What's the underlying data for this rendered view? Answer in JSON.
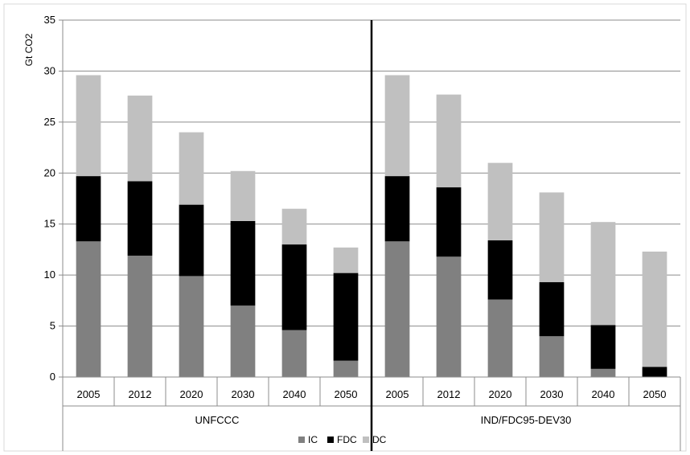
{
  "chart_data": {
    "type": "bar",
    "stacked": true,
    "ylabel": "Gt CO2",
    "ylim": [
      0,
      35
    ],
    "yticks": [
      0,
      5,
      10,
      15,
      20,
      25,
      30,
      35
    ],
    "grid": true,
    "legend_position": "bottom",
    "groups": [
      {
        "name": "UNFCCC",
        "categories": [
          "2005",
          "2012",
          "2020",
          "2030",
          "2040",
          "2050"
        ],
        "series": [
          {
            "name": "IC",
            "color": "#808080",
            "values": [
              13.3,
              11.9,
              9.9,
              7.0,
              4.6,
              1.6
            ]
          },
          {
            "name": "FDC",
            "color": "#000000",
            "values": [
              6.4,
              7.3,
              7.0,
              8.3,
              8.4,
              8.6
            ]
          },
          {
            "name": "DC",
            "color": "#c0c0c0",
            "values": [
              9.9,
              8.4,
              7.1,
              4.9,
              3.5,
              2.5
            ]
          }
        ]
      },
      {
        "name": "IND/FDC95-DEV30",
        "categories": [
          "2005",
          "2012",
          "2020",
          "2030",
          "2040",
          "2050"
        ],
        "series": [
          {
            "name": "IC",
            "color": "#808080",
            "values": [
              13.3,
              11.8,
              7.6,
              4.0,
              0.8,
              0.0
            ]
          },
          {
            "name": "FDC",
            "color": "#000000",
            "values": [
              6.4,
              6.8,
              5.8,
              5.3,
              4.3,
              1.0
            ]
          },
          {
            "name": "DC",
            "color": "#c0c0c0",
            "values": [
              9.9,
              9.1,
              7.6,
              8.8,
              10.1,
              11.3
            ]
          }
        ]
      }
    ],
    "legend": [
      "IC",
      "FDC",
      "DC"
    ]
  }
}
